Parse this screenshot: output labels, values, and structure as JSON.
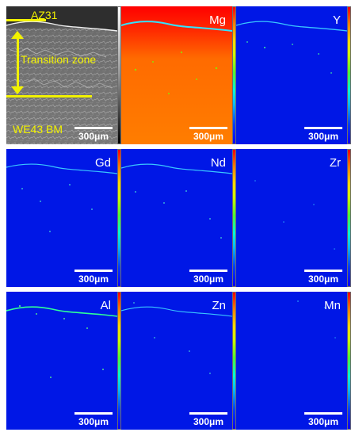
{
  "figure": {
    "sem": {
      "top_label": "AZ31",
      "middle_label": "Transition zone",
      "bottom_label": "WE43 BM",
      "scale_label": "300μm",
      "annotation_color": "#f2f200"
    },
    "maps": [
      {
        "element": "Mg",
        "scale_label": "300μm",
        "base_color": "#0033ff",
        "hot_color": "#ff6a00"
      },
      {
        "element": "Y",
        "scale_label": "300μm",
        "base_color": "#0017e6"
      },
      {
        "element": "Gd",
        "scale_label": "300μm",
        "base_color": "#0017e6"
      },
      {
        "element": "Nd",
        "scale_label": "300μm",
        "base_color": "#0017e6"
      },
      {
        "element": "Zr",
        "scale_label": "300μm",
        "base_color": "#0017e6"
      },
      {
        "element": "Al",
        "scale_label": "300μm",
        "base_color": "#0017e6"
      },
      {
        "element": "Zn",
        "scale_label": "300μm",
        "base_color": "#0017e6"
      },
      {
        "element": "Mn",
        "scale_label": "300μm",
        "base_color": "#0017e6"
      }
    ],
    "palette": {
      "heat_red": "#ff0000",
      "heat_orange": "#ff7a00",
      "heat_yellow": "#ffd600",
      "heat_green": "#4cff33",
      "heat_cyan": "#00ffd2",
      "heat_blue": "#0000ff",
      "sem_gray": "#7f7f7f"
    }
  }
}
